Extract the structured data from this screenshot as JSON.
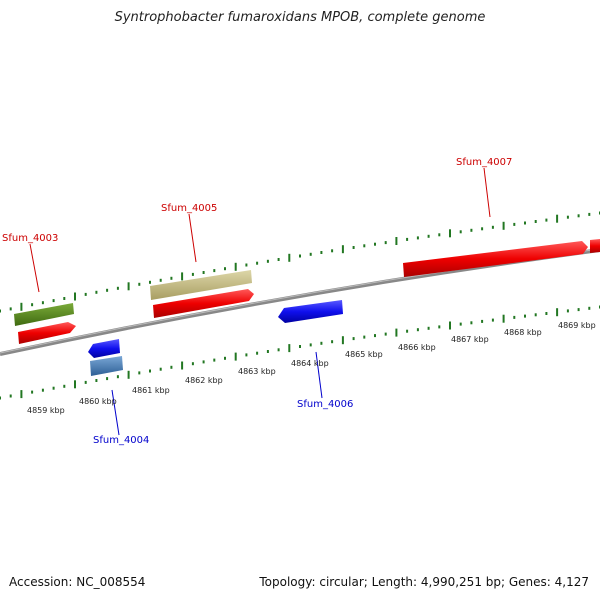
{
  "title": "Syntrophobacter fumaroxidans MPOB, complete genome",
  "footer": {
    "accession": "Accession: NC_008554",
    "summary": "Topology: circular; Length: 4,990,251 bp; Genes: 4,127"
  },
  "scale": {
    "labels": [
      "4859 kbp",
      "4860 kbp",
      "4861 kbp",
      "4862 kbp",
      "4863 kbp",
      "4864 kbp",
      "4865 kbp",
      "4866 kbp",
      "4867 kbp",
      "4868 kbp",
      "4869 kbp"
    ]
  },
  "genes": [
    {
      "id": "Sfum_4003",
      "strand": "+",
      "color": "#cc0000"
    },
    {
      "id": "Sfum_4004",
      "strand": "-",
      "color": "#0000cc"
    },
    {
      "id": "Sfum_4005",
      "strand": "+",
      "color": "#cc0000"
    },
    {
      "id": "Sfum_4006",
      "strand": "-",
      "color": "#0000cc"
    },
    {
      "id": "Sfum_4007",
      "strand": "+",
      "color": "#cc0000"
    }
  ],
  "colors": {
    "cds_plus": "#ee1111",
    "cds_minus": "#1a1aee",
    "feature_olive": "#5a8a1e",
    "feature_khaki": "#c8c08a",
    "feature_steel": "#4a7db5",
    "backbone": "#8a8a8a",
    "tick": "#227722"
  }
}
